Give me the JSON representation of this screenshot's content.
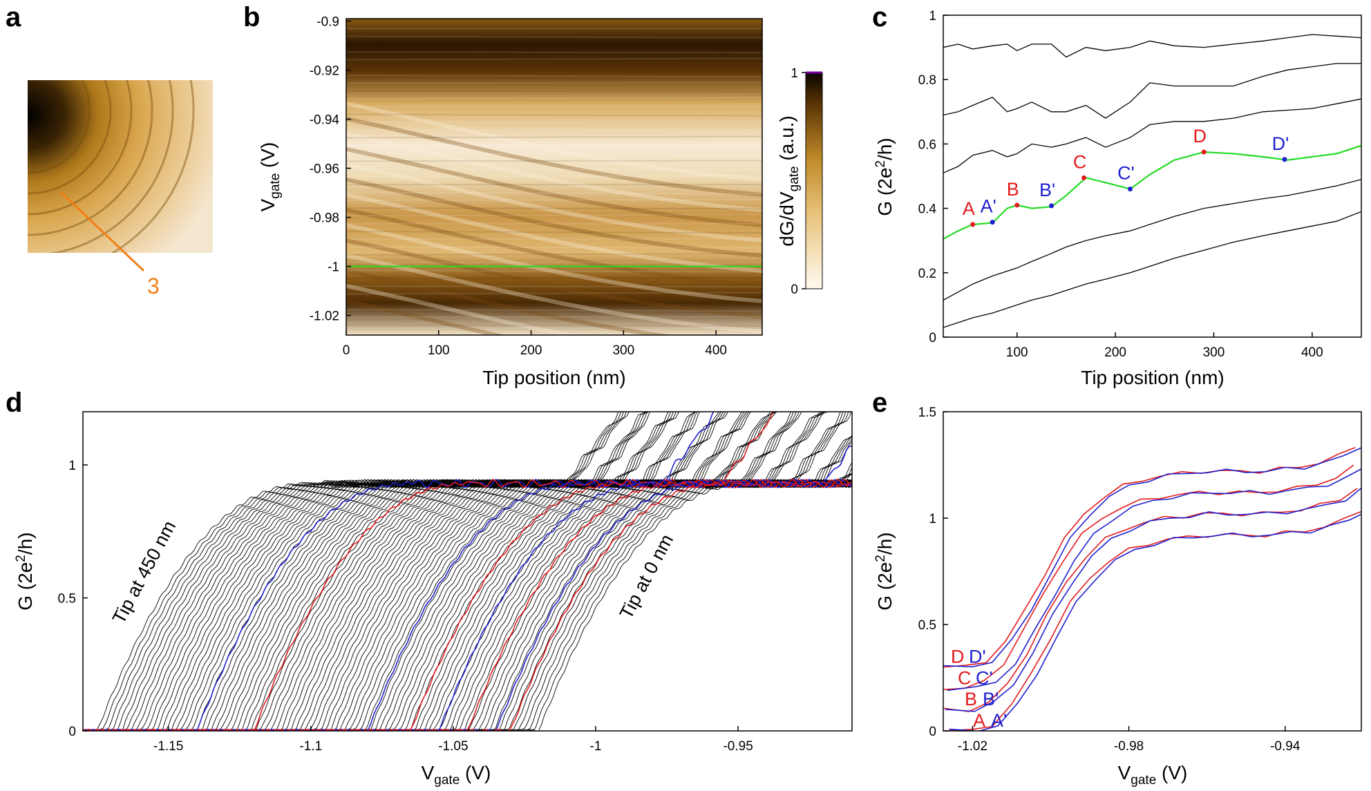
{
  "panel_labels": {
    "a": "a",
    "b": "b",
    "c": "c",
    "d": "d",
    "e": "e"
  },
  "colors": {
    "red": "#e31a1c",
    "blue": "#1f1fcf",
    "green": "#22dd22",
    "orange": "#f07f16",
    "black": "#000000"
  },
  "topography": {
    "line_label": "3"
  },
  "chart_data": [
    {
      "id": "b",
      "type": "heatmap",
      "title": "",
      "xlabel": "Tip position (nm)",
      "ylabel_main": "V",
      "ylabel_sub": "gate",
      "ylabel_unit": " (V)",
      "xlim": [
        0,
        450
      ],
      "ylim": [
        -1.028,
        -0.899
      ],
      "xticks": [
        0,
        100,
        200,
        300,
        400
      ],
      "xtick_labels": [
        "0",
        "100",
        "200",
        "300",
        "400"
      ],
      "yticks": [
        -0.9,
        -0.92,
        -0.94,
        -0.96,
        -0.98,
        -1,
        -1.02
      ],
      "ytick_labels": [
        "-0.9",
        "-0.92",
        "-0.94",
        "-0.96",
        "-0.98",
        "-1",
        "-1.02"
      ],
      "cut_line_vgate": -1.0,
      "colorbar": {
        "label_main": "dG/dV",
        "label_sub": "gate",
        "label_unit": " (a.u.)",
        "min": 0,
        "max": 1,
        "tick_labels": [
          "0",
          "1"
        ]
      }
    },
    {
      "id": "c",
      "type": "line",
      "xlabel": "Tip position (nm)",
      "ylabel": "G (2e",
      "ylabel_sup": "2",
      "ylabel_tail": "/h)",
      "xlim": [
        25,
        450
      ],
      "ylim": [
        0,
        1
      ],
      "xticks": [
        100,
        200,
        300,
        400
      ],
      "xtick_labels": [
        "100",
        "200",
        "300",
        "400"
      ],
      "yticks": [
        0,
        0.2,
        0.4,
        0.6,
        0.8,
        1
      ],
      "ytick_labels": [
        "0",
        "0.2",
        "0.4",
        "0.6",
        "0.8",
        "1"
      ],
      "x": [
        25,
        40,
        55,
        75,
        90,
        100,
        115,
        135,
        150,
        170,
        190,
        215,
        235,
        260,
        290,
        320,
        350,
        375,
        400,
        425,
        450
      ],
      "series": [
        {
          "name": "highlight",
          "color": "green",
          "values": [
            0.305,
            0.33,
            0.35,
            0.355,
            0.4,
            0.41,
            0.4,
            0.405,
            0.44,
            0.495,
            0.48,
            0.46,
            0.505,
            0.55,
            0.575,
            0.57,
            0.56,
            0.55,
            0.56,
            0.57,
            0.595
          ]
        },
        {
          "name": "trace1",
          "color": "black",
          "values": [
            0.03,
            0.045,
            0.06,
            0.075,
            0.09,
            0.1,
            0.115,
            0.13,
            0.145,
            0.165,
            0.18,
            0.2,
            0.22,
            0.245,
            0.27,
            0.295,
            0.315,
            0.33,
            0.345,
            0.36,
            0.39
          ]
        },
        {
          "name": "trace2",
          "color": "black",
          "values": [
            0.115,
            0.14,
            0.165,
            0.19,
            0.205,
            0.215,
            0.235,
            0.26,
            0.28,
            0.3,
            0.315,
            0.33,
            0.35,
            0.375,
            0.4,
            0.415,
            0.43,
            0.44,
            0.455,
            0.47,
            0.49
          ]
        },
        {
          "name": "trace3",
          "color": "black",
          "values": [
            0.51,
            0.53,
            0.565,
            0.58,
            0.56,
            0.57,
            0.6,
            0.59,
            0.6,
            0.62,
            0.59,
            0.62,
            0.66,
            0.67,
            0.67,
            0.68,
            0.7,
            0.705,
            0.71,
            0.725,
            0.74
          ]
        },
        {
          "name": "trace4",
          "color": "black",
          "values": [
            0.69,
            0.7,
            0.72,
            0.745,
            0.7,
            0.71,
            0.73,
            0.7,
            0.7,
            0.72,
            0.68,
            0.73,
            0.79,
            0.78,
            0.78,
            0.78,
            0.81,
            0.83,
            0.84,
            0.85,
            0.85
          ]
        },
        {
          "name": "trace5",
          "color": "black",
          "values": [
            0.9,
            0.91,
            0.895,
            0.905,
            0.91,
            0.89,
            0.91,
            0.91,
            0.87,
            0.9,
            0.89,
            0.9,
            0.92,
            0.905,
            0.9,
            0.91,
            0.92,
            0.93,
            0.94,
            0.935,
            0.93
          ]
        }
      ],
      "points": [
        {
          "label": "A",
          "x": 55,
          "y": 0.35,
          "color": "red"
        },
        {
          "label": "A'",
          "x": 75,
          "y": 0.357,
          "color": "blue"
        },
        {
          "label": "B",
          "x": 100,
          "y": 0.41,
          "color": "red"
        },
        {
          "label": "B'",
          "x": 135,
          "y": 0.408,
          "color": "blue"
        },
        {
          "label": "C",
          "x": 168,
          "y": 0.495,
          "color": "red"
        },
        {
          "label": "C'",
          "x": 215,
          "y": 0.46,
          "color": "blue"
        },
        {
          "label": "D",
          "x": 290,
          "y": 0.575,
          "color": "red"
        },
        {
          "label": "D'",
          "x": 372,
          "y": 0.552,
          "color": "blue"
        }
      ]
    },
    {
      "id": "d",
      "type": "line",
      "description_series": "family of G(Vgate) traces, one per tip position from 0 nm to 450 nm",
      "xlabel_main": "V",
      "xlabel_sub": "gate",
      "xlabel_unit": " (V)",
      "ylabel": "G (2e",
      "ylabel_sup": "2",
      "ylabel_tail": "/h)",
      "xlim": [
        -1.18,
        -0.91
      ],
      "ylim": [
        0,
        1.2
      ],
      "xticks": [
        -1.15,
        -1.1,
        -1.05,
        -1,
        -0.95
      ],
      "xtick_labels": [
        "-1.15",
        "-1.1",
        "-1.05",
        "-1",
        "-0.95"
      ],
      "yticks": [
        0,
        0.5,
        1
      ],
      "ytick_labels": [
        "0",
        "0.5",
        "1"
      ],
      "trace_count": 90,
      "rise_start_first": -1.02,
      "rise_start_last": -1.175,
      "plateau_level": 0.93,
      "highlighted_traces": [
        {
          "rise_start": -1.14,
          "color": "blue"
        },
        {
          "rise_start": -1.12,
          "color": "red"
        },
        {
          "rise_start": -1.08,
          "color": "blue"
        },
        {
          "rise_start": -1.065,
          "color": "red"
        },
        {
          "rise_start": -1.055,
          "color": "blue"
        },
        {
          "rise_start": -1.045,
          "color": "red"
        },
        {
          "rise_start": -1.035,
          "color": "blue"
        },
        {
          "rise_start": -1.03,
          "color": "red"
        }
      ],
      "annotations": [
        {
          "text": "Tip at 450 nm"
        },
        {
          "text": "Tip at 0 nm"
        }
      ]
    },
    {
      "id": "e",
      "type": "line",
      "xlabel_main": "V",
      "xlabel_sub": "gate",
      "xlabel_unit": " (V)",
      "ylabel": "G (2e",
      "ylabel_sup": "2",
      "ylabel_tail": "/h)",
      "xlim": [
        -1.0275,
        -0.9205
      ],
      "ylim": [
        0,
        1.5
      ],
      "xticks": [
        -1.02,
        -0.98,
        -0.94
      ],
      "xtick_labels": [
        "-1.02",
        "-0.98",
        "-0.94"
      ],
      "yticks": [
        0,
        0.5,
        1,
        1.5
      ],
      "ytick_labels": [
        "0",
        "0.5",
        "1",
        "1.5"
      ],
      "x": [
        -1.0275,
        -1.02,
        -1.015,
        -1.01,
        -1.005,
        -1.0,
        -0.995,
        -0.99,
        -0.985,
        -0.98,
        -0.975,
        -0.97,
        -0.965,
        -0.96,
        -0.955,
        -0.95,
        -0.945,
        -0.94,
        -0.935,
        -0.93,
        -0.925,
        -0.9205
      ],
      "offsets": [
        0,
        0.1,
        0.2,
        0.3
      ],
      "base_curve": [
        0.0,
        0.0,
        0.03,
        0.12,
        0.27,
        0.44,
        0.6,
        0.72,
        0.8,
        0.85,
        0.88,
        0.9,
        0.91,
        0.92,
        0.92,
        0.92,
        0.92,
        0.93,
        0.94,
        0.96,
        0.99,
        1.04
      ],
      "series": [
        {
          "name": "A",
          "color": "red",
          "shift": 0.0
        },
        {
          "name": "A'",
          "color": "blue",
          "shift": 0.0015
        },
        {
          "name": "B",
          "color": "red",
          "shift": -0.001
        },
        {
          "name": "B'",
          "color": "blue",
          "shift": 0.0005
        },
        {
          "name": "C",
          "color": "red",
          "shift": -0.002
        },
        {
          "name": "C'",
          "color": "blue",
          "shift": 0.001
        },
        {
          "name": "D",
          "color": "red",
          "shift": -0.0015
        },
        {
          "name": "D'",
          "color": "blue",
          "shift": 0.0
        }
      ],
      "labels": [
        {
          "text": "A",
          "color": "red"
        },
        {
          "text": "A'",
          "color": "blue"
        },
        {
          "text": "B",
          "color": "red"
        },
        {
          "text": "B'",
          "color": "blue"
        },
        {
          "text": "C",
          "color": "red"
        },
        {
          "text": "C'",
          "color": "blue"
        },
        {
          "text": "D",
          "color": "red"
        },
        {
          "text": "D'",
          "color": "blue"
        }
      ]
    }
  ]
}
